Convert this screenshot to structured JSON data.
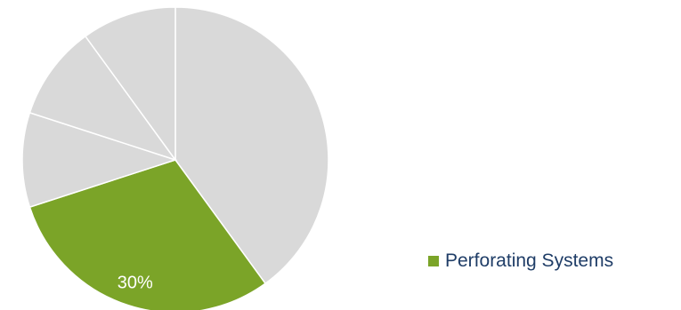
{
  "chart_data": {
    "type": "pie",
    "slices": [
      {
        "name": "",
        "value": 40,
        "color": "#d9d9d9",
        "label": ""
      },
      {
        "name": "Perforating Systems",
        "value": 30,
        "color": "#7ba428",
        "label": "30%"
      },
      {
        "name": "",
        "value": 10,
        "color": "#d9d9d9",
        "label": ""
      },
      {
        "name": "",
        "value": 10,
        "color": "#d9d9d9",
        "label": ""
      },
      {
        "name": "",
        "value": 10,
        "color": "#d9d9d9",
        "label": ""
      }
    ],
    "start_angle_deg": 0,
    "direction": "clockwise",
    "slice_border_color": "#ffffff",
    "data_label_color": "#ffffff",
    "legend": {
      "position": "right",
      "entries": [
        {
          "label": "Perforating Systems",
          "color": "#7ba428"
        }
      ]
    }
  }
}
